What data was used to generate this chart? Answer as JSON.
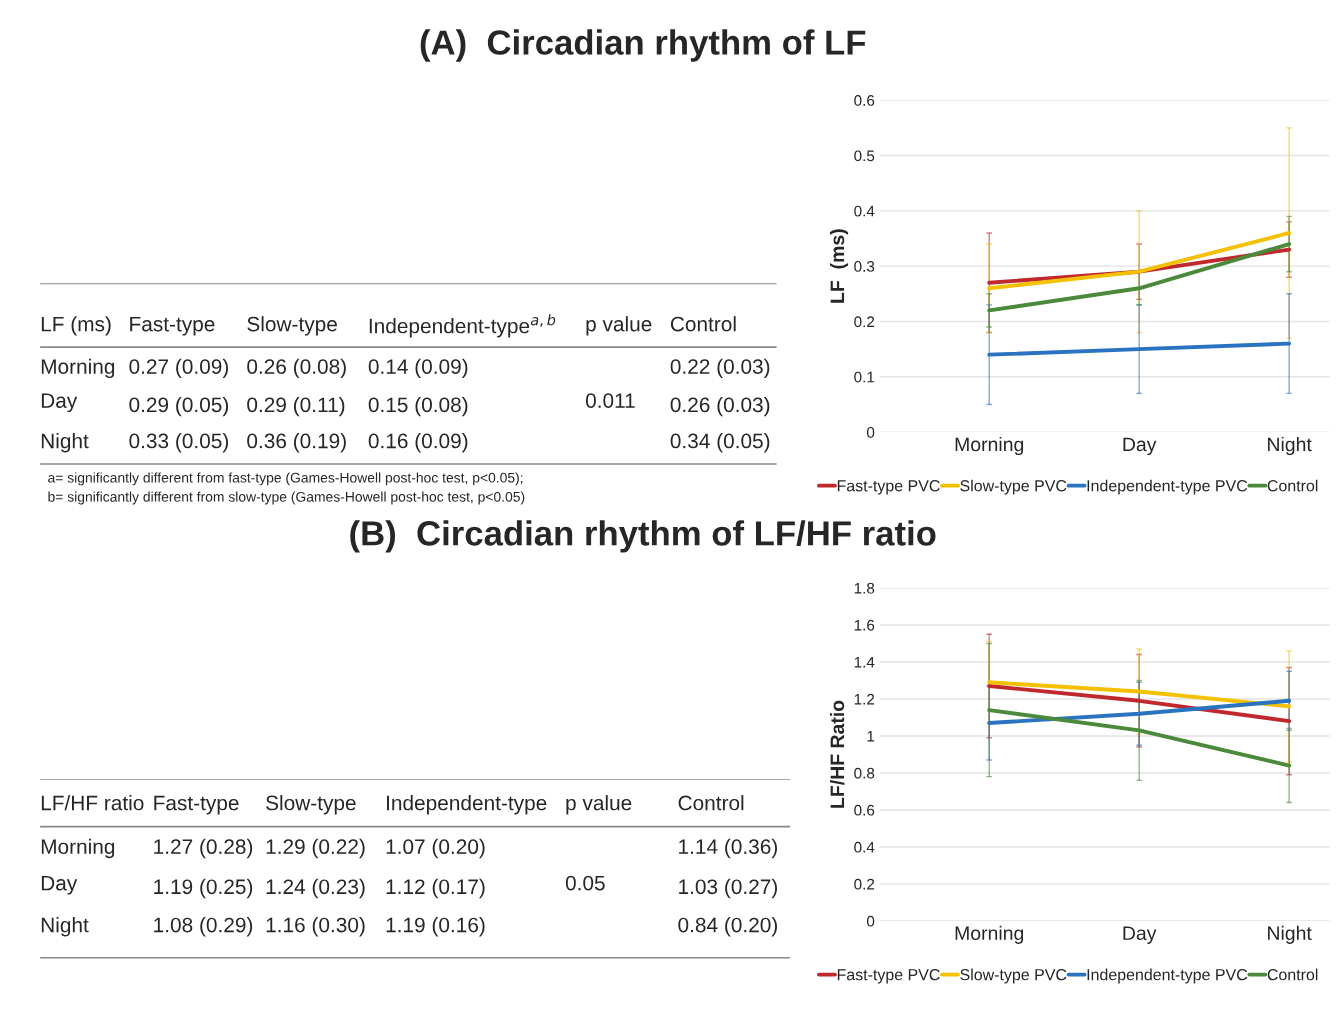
{
  "chart_data": [
    {
      "type": "line",
      "title": "(A)  Circadian rhythm of LF",
      "ylabel": "LF  (ms)",
      "categories": [
        "Morning",
        "Day",
        "Night"
      ],
      "ylim": [
        0,
        0.6
      ],
      "yticks": [
        0,
        0.1,
        0.2,
        0.3,
        0.4,
        0.5,
        0.6
      ],
      "grid": "y",
      "legend": "bottom",
      "marker": "none",
      "series": [
        {
          "name": "Fast-type PVC",
          "color": "#c0282d",
          "values": [
            0.27,
            0.29,
            0.33
          ],
          "errors": [
            0.09,
            0.05,
            0.05
          ]
        },
        {
          "name": "Slow-type PVC",
          "color": "#f5c000",
          "values": [
            0.26,
            0.29,
            0.36
          ],
          "errors": [
            0.08,
            0.11,
            0.19
          ]
        },
        {
          "name": "Independent-type PVC",
          "color": "#2a73c0",
          "values": [
            0.14,
            0.15,
            0.16
          ],
          "errors": [
            0.09,
            0.08,
            0.09
          ]
        },
        {
          "name": "Control",
          "color": "#4a8a3a",
          "values": [
            0.22,
            0.26,
            0.34
          ],
          "errors": [
            0.03,
            0.03,
            0.05
          ]
        }
      ],
      "annotations": [
        "LF (ms)",
        "Fast-type",
        "Slow-type",
        "Independent-type$^{a,b}$",
        "p value",
        "Control",
        "0.27 (0.09)",
        "0.26 (0.08)",
        "0.14 (0.09)",
        "0.22 (0.03)",
        "0.29 (0.05)",
        "0.29 (0.11)",
        "0.15 (0.08)",
        "0.26 (0.03)",
        "0.33 (0.05)",
        "0.36 (0.19)",
        "0.16 (0.09)",
        "0.34 (0.05)",
        "0.011",
        "a= significantly different from fast-type (Games-Howell post-hoc test, p<0.05);",
        "b= significantly different from slow-type (Games-Howell post-hoc test, p<0.05)"
      ]
    },
    {
      "type": "line",
      "title": "(B)  Circadian rhythm of LF/HF ratio",
      "ylabel": "LF/HF Ratio",
      "categories": [
        "Morning",
        "Day",
        "Night"
      ],
      "ylim": [
        0,
        1.8
      ],
      "yticks": [
        0,
        0.2,
        0.4,
        0.6,
        0.8,
        1,
        1.2,
        1.4,
        1.6,
        1.8
      ],
      "grid": "y",
      "legend": "bottom",
      "marker": "none",
      "series": [
        {
          "name": "Fast-type PVC",
          "color": "#c0282d",
          "values": [
            1.27,
            1.19,
            1.08
          ],
          "errors": [
            0.28,
            0.25,
            0.29
          ]
        },
        {
          "name": "Slow-type PVC",
          "color": "#f5c000",
          "values": [
            1.29,
            1.24,
            1.16
          ],
          "errors": [
            0.22,
            0.23,
            0.3
          ]
        },
        {
          "name": "Independent-type PVC",
          "color": "#2a73c0",
          "values": [
            1.07,
            1.12,
            1.19
          ],
          "errors": [
            0.2,
            0.17,
            0.16
          ]
        },
        {
          "name": "Control",
          "color": "#4a8a3a",
          "values": [
            1.14,
            1.03,
            0.84
          ],
          "errors": [
            0.36,
            0.27,
            0.2
          ]
        }
      ],
      "annotations": [
        "LF/HF ratio",
        "Fast-type",
        "Slow-type",
        "Independent-type",
        "p value",
        "Control",
        "1.27 (0.28)",
        "1.29 (0.22)",
        "1.07 (0.20)",
        "1.14 (0.36)",
        "1.19 (0.25)",
        "1.24 (0.23)",
        "1.12 (0.17)",
        "1.03 (0.27)",
        "1.08 (0.29)",
        "1.16 (0.30)",
        "1.19 (0.16)",
        "0.84 (0.20)",
        "0.05"
      ]
    }
  ]
}
